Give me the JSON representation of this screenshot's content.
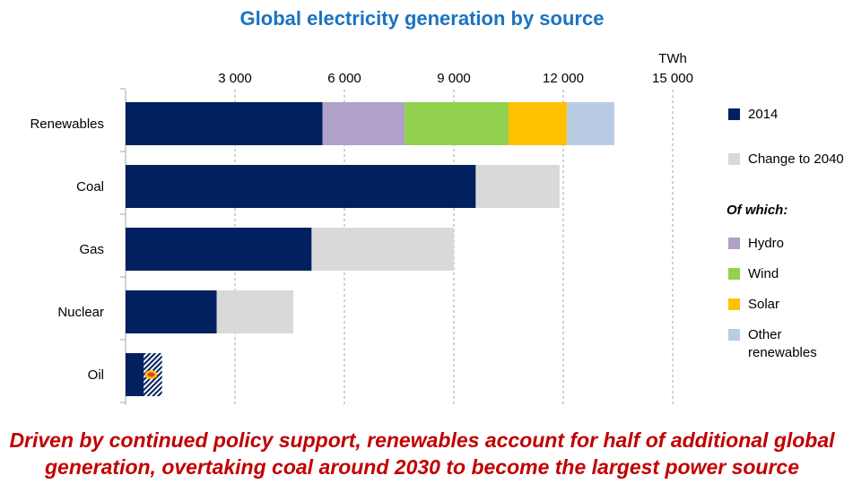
{
  "chart_data": {
    "type": "bar",
    "orientation": "horizontal",
    "stacked": true,
    "title": "Global electricity generation by source",
    "unit_label": "TWh",
    "xlim": [
      0,
      15000
    ],
    "x_ticks": [
      "3 000",
      "6 000",
      "9 000",
      "12 000",
      "15 000"
    ],
    "x_tick_values": [
      3000,
      6000,
      9000,
      12000,
      15000
    ],
    "grid": "vertical dashed",
    "categories": [
      "Renewables",
      "Coal",
      "Gas",
      "Nuclear",
      "Oil"
    ],
    "series": [
      {
        "name": "2014",
        "color": "#002060",
        "values": [
          5400,
          9600,
          5100,
          2500,
          500
        ]
      },
      {
        "name": "Change to 2040",
        "color": "#d9d9d9",
        "values": [
          0,
          2300,
          3900,
          2100,
          0
        ]
      },
      {
        "name": "Hydro",
        "color": "#b1a0c7",
        "values": [
          2250,
          0,
          0,
          0,
          0
        ]
      },
      {
        "name": "Wind",
        "color": "#92d050",
        "values": [
          2850,
          0,
          0,
          0,
          0
        ]
      },
      {
        "name": "Solar",
        "color": "#ffc000",
        "values": [
          1600,
          0,
          0,
          0,
          0
        ]
      },
      {
        "name": "Other renewables",
        "color": "#b8cce4",
        "values": [
          1300,
          0,
          0,
          0,
          0
        ]
      }
    ],
    "oil_change_note": "decline",
    "oil_change_value": 500,
    "legend_position": "right"
  },
  "legend": {
    "items": [
      {
        "label": "2014",
        "color": "#002060"
      },
      {
        "label": "Change to 2040",
        "color": "#d9d9d9"
      },
      {
        "label": "Hydro",
        "color": "#b1a0c7"
      },
      {
        "label": "Wind",
        "color": "#92d050"
      },
      {
        "label": "Solar",
        "color": "#ffc000"
      },
      {
        "label": "Other renewables",
        "color": "#b8cce4"
      }
    ],
    "subheading": "Of which:"
  },
  "footer": {
    "line1": "Driven by continued policy support, renewables account for half of additional global",
    "line2": "generation, overtaking coal around 2030 to become the largest power source"
  }
}
